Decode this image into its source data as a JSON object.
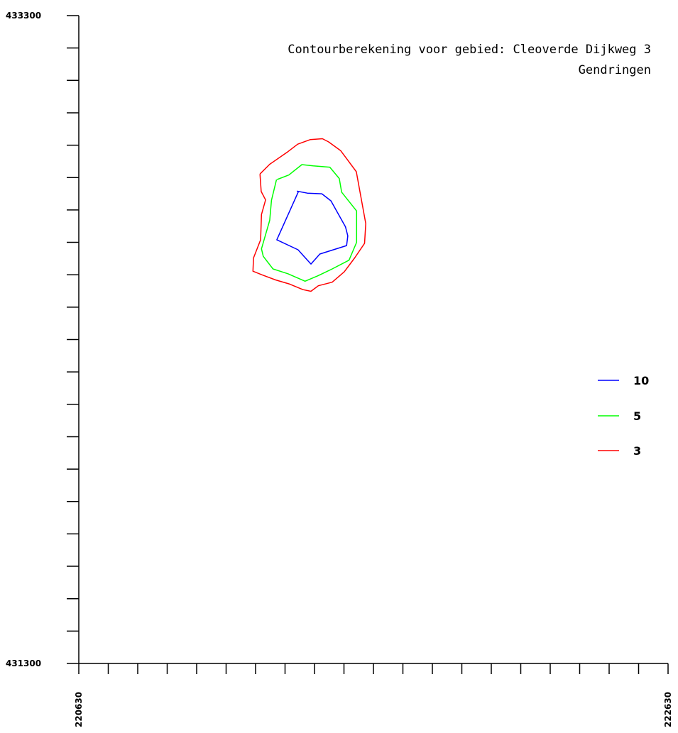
{
  "chart_data": {
    "type": "line",
    "title_lines": [
      "Contourberekening voor gebied: Cleoverde Dijkweg 3",
      "Gendringen"
    ],
    "xlim": [
      220630,
      222630
    ],
    "ylim": [
      431300,
      433300
    ],
    "x_tick_labels": [
      "220630",
      "222630"
    ],
    "y_tick_labels": [
      "433300",
      "431300"
    ],
    "x_tick_step": 100,
    "y_tick_step": 100,
    "grid": false,
    "legend_position": "right",
    "series": [
      {
        "name": "10",
        "color": "#0000ff",
        "points": [
          [
            221370,
            432758
          ],
          [
            221406,
            432752
          ],
          [
            221455,
            432750
          ],
          [
            221486,
            432728
          ],
          [
            221535,
            432648
          ],
          [
            221543,
            432620
          ],
          [
            221539,
            432590
          ],
          [
            221448,
            432564
          ],
          [
            221418,
            432533
          ],
          [
            221374,
            432577
          ],
          [
            221302,
            432608
          ],
          [
            221376,
            432758
          ]
        ]
      },
      {
        "name": "5",
        "color": "#00ff00",
        "points": [
          [
            221303,
            432794
          ],
          [
            221343,
            432808
          ],
          [
            221387,
            432840
          ],
          [
            221426,
            432836
          ],
          [
            221482,
            432832
          ],
          [
            221514,
            432797
          ],
          [
            221522,
            432755
          ],
          [
            221573,
            432697
          ],
          [
            221573,
            432600
          ],
          [
            221547,
            432545
          ],
          [
            221490,
            432518
          ],
          [
            221442,
            432497
          ],
          [
            221398,
            432480
          ],
          [
            221340,
            432503
          ],
          [
            221289,
            432518
          ],
          [
            221256,
            432557
          ],
          [
            221250,
            432580
          ],
          [
            221278,
            432668
          ],
          [
            221284,
            432730
          ],
          [
            221301,
            432794
          ]
        ]
      },
      {
        "name": "3",
        "color": "#ff0000",
        "points": [
          [
            221245,
            432811
          ],
          [
            221278,
            432841
          ],
          [
            221340,
            432880
          ],
          [
            221373,
            432903
          ],
          [
            221415,
            432917
          ],
          [
            221457,
            432920
          ],
          [
            221478,
            432910
          ],
          [
            221519,
            432883
          ],
          [
            221541,
            432856
          ],
          [
            221572,
            432818
          ],
          [
            221585,
            432753
          ],
          [
            221604,
            432658
          ],
          [
            221600,
            432597
          ],
          [
            221567,
            432553
          ],
          [
            221531,
            432509
          ],
          [
            221490,
            432477
          ],
          [
            221443,
            432466
          ],
          [
            221418,
            432449
          ],
          [
            221391,
            432454
          ],
          [
            221346,
            432471
          ],
          [
            221298,
            432484
          ],
          [
            221251,
            432500
          ],
          [
            221221,
            432511
          ],
          [
            221223,
            432552
          ],
          [
            221247,
            432608
          ],
          [
            221250,
            432686
          ],
          [
            221264,
            432731
          ],
          [
            221249,
            432757
          ],
          [
            221245,
            432811
          ]
        ]
      }
    ]
  }
}
